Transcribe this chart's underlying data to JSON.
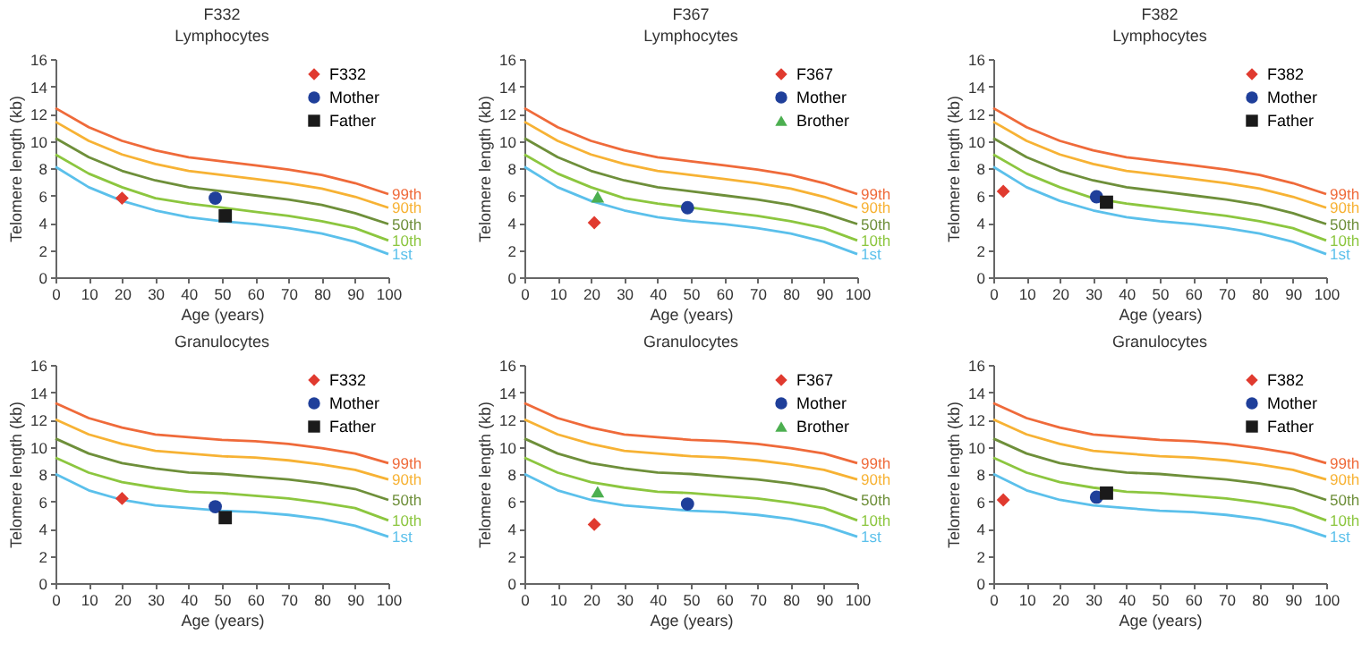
{
  "chart_data": [
    {
      "type": "line",
      "title": "F332",
      "subtitle": "Lymphocytes",
      "xlabel": "Age (years)",
      "ylabel": "Telomere length (kb)",
      "xlim": [
        0,
        100
      ],
      "xticks": [
        0,
        10,
        20,
        30,
        40,
        50,
        60,
        70,
        80,
        90,
        100
      ],
      "ylim": [
        0,
        16
      ],
      "yticks": [
        0,
        2,
        4,
        6,
        8,
        10,
        12,
        14,
        16
      ],
      "legend": "top right",
      "x": [
        0,
        10,
        20,
        30,
        40,
        50,
        60,
        70,
        80,
        90,
        100
      ],
      "series": [
        {
          "name": "99th",
          "color": "#ef6a3a",
          "values": [
            12.4,
            11.0,
            10.0,
            9.3,
            8.8,
            8.5,
            8.2,
            7.9,
            7.5,
            6.9,
            6.1
          ]
        },
        {
          "name": "90th",
          "color": "#f7b234",
          "values": [
            11.4,
            10.0,
            9.0,
            8.3,
            7.8,
            7.5,
            7.2,
            6.9,
            6.5,
            5.9,
            5.1
          ]
        },
        {
          "name": "50th",
          "color": "#6e8f3a",
          "values": [
            10.2,
            8.8,
            7.8,
            7.1,
            6.6,
            6.3,
            6.0,
            5.7,
            5.3,
            4.7,
            3.9
          ]
        },
        {
          "name": "10th",
          "color": "#8cc63f",
          "values": [
            9.0,
            7.6,
            6.6,
            5.8,
            5.4,
            5.1,
            4.8,
            4.5,
            4.1,
            3.6,
            2.7
          ]
        },
        {
          "name": "1st",
          "color": "#5bc0eb",
          "values": [
            8.1,
            6.6,
            5.6,
            4.9,
            4.4,
            4.1,
            3.9,
            3.6,
            3.2,
            2.6,
            1.7
          ]
        },
        {
          "name": "F332",
          "type": "scatter",
          "marker": "diamond",
          "color": "#e03a2f",
          "x": [
            20
          ],
          "values": [
            5.8
          ]
        },
        {
          "name": "Mother",
          "type": "scatter",
          "marker": "circle",
          "color": "#1f3f9a",
          "x": [
            48
          ],
          "values": [
            5.8
          ]
        },
        {
          "name": "Father",
          "type": "scatter",
          "marker": "square",
          "color": "#1a1a1a",
          "x": [
            51
          ],
          "values": [
            4.5
          ]
        }
      ]
    },
    {
      "type": "line",
      "title": "F367",
      "subtitle": "Lymphocytes",
      "xlabel": "Age (years)",
      "ylabel": "Telomere length (kb)",
      "xlim": [
        0,
        100
      ],
      "xticks": [
        0,
        10,
        20,
        30,
        40,
        50,
        60,
        70,
        80,
        90,
        100
      ],
      "ylim": [
        0,
        16
      ],
      "yticks": [
        0,
        2,
        4,
        6,
        8,
        10,
        12,
        14,
        16
      ],
      "legend": "top right",
      "x": [
        0,
        10,
        20,
        30,
        40,
        50,
        60,
        70,
        80,
        90,
        100
      ],
      "series": [
        {
          "name": "99th",
          "color": "#ef6a3a",
          "values": [
            12.4,
            11.0,
            10.0,
            9.3,
            8.8,
            8.5,
            8.2,
            7.9,
            7.5,
            6.9,
            6.1
          ]
        },
        {
          "name": "90th",
          "color": "#f7b234",
          "values": [
            11.4,
            10.0,
            9.0,
            8.3,
            7.8,
            7.5,
            7.2,
            6.9,
            6.5,
            5.9,
            5.1
          ]
        },
        {
          "name": "50th",
          "color": "#6e8f3a",
          "values": [
            10.2,
            8.8,
            7.8,
            7.1,
            6.6,
            6.3,
            6.0,
            5.7,
            5.3,
            4.7,
            3.9
          ]
        },
        {
          "name": "10th",
          "color": "#8cc63f",
          "values": [
            9.0,
            7.6,
            6.6,
            5.8,
            5.4,
            5.1,
            4.8,
            4.5,
            4.1,
            3.6,
            2.7
          ]
        },
        {
          "name": "1st",
          "color": "#5bc0eb",
          "values": [
            8.1,
            6.6,
            5.6,
            4.9,
            4.4,
            4.1,
            3.9,
            3.6,
            3.2,
            2.6,
            1.7
          ]
        },
        {
          "name": "F367",
          "type": "scatter",
          "marker": "diamond",
          "color": "#e03a2f",
          "x": [
            21
          ],
          "values": [
            4.0
          ]
        },
        {
          "name": "Mother",
          "type": "scatter",
          "marker": "circle",
          "color": "#1f3f9a",
          "x": [
            49
          ],
          "values": [
            5.1
          ]
        },
        {
          "name": "Brother",
          "type": "scatter",
          "marker": "triangle",
          "color": "#4caf50",
          "x": [
            22
          ],
          "values": [
            5.9
          ]
        }
      ]
    },
    {
      "type": "line",
      "title": "F382",
      "subtitle": "Lymphocytes",
      "xlabel": "Age (years)",
      "ylabel": "Telomere length (kb)",
      "xlim": [
        0,
        100
      ],
      "xticks": [
        0,
        10,
        20,
        30,
        40,
        50,
        60,
        70,
        80,
        90,
        100
      ],
      "ylim": [
        0,
        16
      ],
      "yticks": [
        0,
        2,
        4,
        6,
        8,
        10,
        12,
        14,
        16
      ],
      "legend": "top right",
      "x": [
        0,
        10,
        20,
        30,
        40,
        50,
        60,
        70,
        80,
        90,
        100
      ],
      "series": [
        {
          "name": "99th",
          "color": "#ef6a3a",
          "values": [
            12.4,
            11.0,
            10.0,
            9.3,
            8.8,
            8.5,
            8.2,
            7.9,
            7.5,
            6.9,
            6.1
          ]
        },
        {
          "name": "90th",
          "color": "#f7b234",
          "values": [
            11.4,
            10.0,
            9.0,
            8.3,
            7.8,
            7.5,
            7.2,
            6.9,
            6.5,
            5.9,
            5.1
          ]
        },
        {
          "name": "50th",
          "color": "#6e8f3a",
          "values": [
            10.2,
            8.8,
            7.8,
            7.1,
            6.6,
            6.3,
            6.0,
            5.7,
            5.3,
            4.7,
            3.9
          ]
        },
        {
          "name": "10th",
          "color": "#8cc63f",
          "values": [
            9.0,
            7.6,
            6.6,
            5.8,
            5.4,
            5.1,
            4.8,
            4.5,
            4.1,
            3.6,
            2.7
          ]
        },
        {
          "name": "1st",
          "color": "#5bc0eb",
          "values": [
            8.1,
            6.6,
            5.6,
            4.9,
            4.4,
            4.1,
            3.9,
            3.6,
            3.2,
            2.6,
            1.7
          ]
        },
        {
          "name": "F382",
          "type": "scatter",
          "marker": "diamond",
          "color": "#e03a2f",
          "x": [
            3
          ],
          "values": [
            6.3
          ]
        },
        {
          "name": "Mother",
          "type": "scatter",
          "marker": "circle",
          "color": "#1f3f9a",
          "x": [
            31
          ],
          "values": [
            5.9
          ]
        },
        {
          "name": "Father",
          "type": "scatter",
          "marker": "square",
          "color": "#1a1a1a",
          "x": [
            34
          ],
          "values": [
            5.5
          ]
        }
      ]
    },
    {
      "type": "line",
      "title": "Granulocytes",
      "xlabel": "Age (years)",
      "ylabel": "Telomere length (kb)",
      "xlim": [
        0,
        100
      ],
      "xticks": [
        0,
        10,
        20,
        30,
        40,
        50,
        60,
        70,
        80,
        90,
        100
      ],
      "ylim": [
        0,
        16
      ],
      "yticks": [
        0,
        2,
        4,
        6,
        8,
        10,
        12,
        14,
        16
      ],
      "legend": "top right",
      "x": [
        0,
        10,
        20,
        30,
        40,
        50,
        60,
        70,
        80,
        90,
        100
      ],
      "series": [
        {
          "name": "99th",
          "color": "#ef6a3a",
          "values": [
            13.2,
            12.1,
            11.4,
            10.9,
            10.7,
            10.5,
            10.4,
            10.2,
            9.9,
            9.5,
            8.8
          ]
        },
        {
          "name": "90th",
          "color": "#f7b234",
          "values": [
            12.0,
            10.9,
            10.2,
            9.7,
            9.5,
            9.3,
            9.2,
            9.0,
            8.7,
            8.3,
            7.6
          ]
        },
        {
          "name": "50th",
          "color": "#6e8f3a",
          "values": [
            10.6,
            9.5,
            8.8,
            8.4,
            8.1,
            8.0,
            7.8,
            7.6,
            7.3,
            6.9,
            6.1
          ]
        },
        {
          "name": "10th",
          "color": "#8cc63f",
          "values": [
            9.2,
            8.1,
            7.4,
            7.0,
            6.7,
            6.6,
            6.4,
            6.2,
            5.9,
            5.5,
            4.6
          ]
        },
        {
          "name": "1st",
          "color": "#5bc0eb",
          "values": [
            8.0,
            6.8,
            6.1,
            5.7,
            5.5,
            5.3,
            5.2,
            5.0,
            4.7,
            4.2,
            3.4
          ]
        },
        {
          "name": "F332",
          "type": "scatter",
          "marker": "diamond",
          "color": "#e03a2f",
          "x": [
            20
          ],
          "values": [
            6.2
          ]
        },
        {
          "name": "Mother",
          "type": "scatter",
          "marker": "circle",
          "color": "#1f3f9a",
          "x": [
            48
          ],
          "values": [
            5.6
          ]
        },
        {
          "name": "Father",
          "type": "scatter",
          "marker": "square",
          "color": "#1a1a1a",
          "x": [
            51
          ],
          "values": [
            4.8
          ]
        }
      ]
    },
    {
      "type": "line",
      "title": "Granulocytes",
      "xlabel": "Age (years)",
      "ylabel": "Telomere length (kb)",
      "xlim": [
        0,
        100
      ],
      "xticks": [
        0,
        10,
        20,
        30,
        40,
        50,
        60,
        70,
        80,
        90,
        100
      ],
      "ylim": [
        0,
        16
      ],
      "yticks": [
        0,
        2,
        4,
        6,
        8,
        10,
        12,
        14,
        16
      ],
      "legend": "top right",
      "x": [
        0,
        10,
        20,
        30,
        40,
        50,
        60,
        70,
        80,
        90,
        100
      ],
      "series": [
        {
          "name": "99th",
          "color": "#ef6a3a",
          "values": [
            13.2,
            12.1,
            11.4,
            10.9,
            10.7,
            10.5,
            10.4,
            10.2,
            9.9,
            9.5,
            8.8
          ]
        },
        {
          "name": "90th",
          "color": "#f7b234",
          "values": [
            12.0,
            10.9,
            10.2,
            9.7,
            9.5,
            9.3,
            9.2,
            9.0,
            8.7,
            8.3,
            7.6
          ]
        },
        {
          "name": "50th",
          "color": "#6e8f3a",
          "values": [
            10.6,
            9.5,
            8.8,
            8.4,
            8.1,
            8.0,
            7.8,
            7.6,
            7.3,
            6.9,
            6.1
          ]
        },
        {
          "name": "10th",
          "color": "#8cc63f",
          "values": [
            9.2,
            8.1,
            7.4,
            7.0,
            6.7,
            6.6,
            6.4,
            6.2,
            5.9,
            5.5,
            4.6
          ]
        },
        {
          "name": "1st",
          "color": "#5bc0eb",
          "values": [
            8.0,
            6.8,
            6.1,
            5.7,
            5.5,
            5.3,
            5.2,
            5.0,
            4.7,
            4.2,
            3.4
          ]
        },
        {
          "name": "F367",
          "type": "scatter",
          "marker": "diamond",
          "color": "#e03a2f",
          "x": [
            21
          ],
          "values": [
            4.3
          ]
        },
        {
          "name": "Mother",
          "type": "scatter",
          "marker": "circle",
          "color": "#1f3f9a",
          "x": [
            49
          ],
          "values": [
            5.8
          ]
        },
        {
          "name": "Brother",
          "type": "scatter",
          "marker": "triangle",
          "color": "#4caf50",
          "x": [
            22
          ],
          "values": [
            6.7
          ]
        }
      ]
    },
    {
      "type": "line",
      "title": "Granulocytes",
      "xlabel": "Age (years)",
      "ylabel": "Telomere length (kb)",
      "xlim": [
        0,
        100
      ],
      "xticks": [
        0,
        10,
        20,
        30,
        40,
        50,
        60,
        70,
        80,
        90,
        100
      ],
      "ylim": [
        0,
        16
      ],
      "yticks": [
        0,
        2,
        4,
        6,
        8,
        10,
        12,
        14,
        16
      ],
      "legend": "top right",
      "x": [
        0,
        10,
        20,
        30,
        40,
        50,
        60,
        70,
        80,
        90,
        100
      ],
      "series": [
        {
          "name": "99th",
          "color": "#ef6a3a",
          "values": [
            13.2,
            12.1,
            11.4,
            10.9,
            10.7,
            10.5,
            10.4,
            10.2,
            9.9,
            9.5,
            8.8
          ]
        },
        {
          "name": "90th",
          "color": "#f7b234",
          "values": [
            12.0,
            10.9,
            10.2,
            9.7,
            9.5,
            9.3,
            9.2,
            9.0,
            8.7,
            8.3,
            7.6
          ]
        },
        {
          "name": "50th",
          "color": "#6e8f3a",
          "values": [
            10.6,
            9.5,
            8.8,
            8.4,
            8.1,
            8.0,
            7.8,
            7.6,
            7.3,
            6.9,
            6.1
          ]
        },
        {
          "name": "10th",
          "color": "#8cc63f",
          "values": [
            9.2,
            8.1,
            7.4,
            7.0,
            6.7,
            6.6,
            6.4,
            6.2,
            5.9,
            5.5,
            4.6
          ]
        },
        {
          "name": "1st",
          "color": "#5bc0eb",
          "values": [
            8.0,
            6.8,
            6.1,
            5.7,
            5.5,
            5.3,
            5.2,
            5.0,
            4.7,
            4.2,
            3.4
          ]
        },
        {
          "name": "F382",
          "type": "scatter",
          "marker": "diamond",
          "color": "#e03a2f",
          "x": [
            3
          ],
          "values": [
            6.1
          ]
        },
        {
          "name": "Mother",
          "type": "scatter",
          "marker": "circle",
          "color": "#1f3f9a",
          "x": [
            31
          ],
          "values": [
            6.3
          ]
        },
        {
          "name": "Father",
          "type": "scatter",
          "marker": "square",
          "color": "#1a1a1a",
          "x": [
            34
          ],
          "values": [
            6.6
          ]
        }
      ]
    }
  ]
}
